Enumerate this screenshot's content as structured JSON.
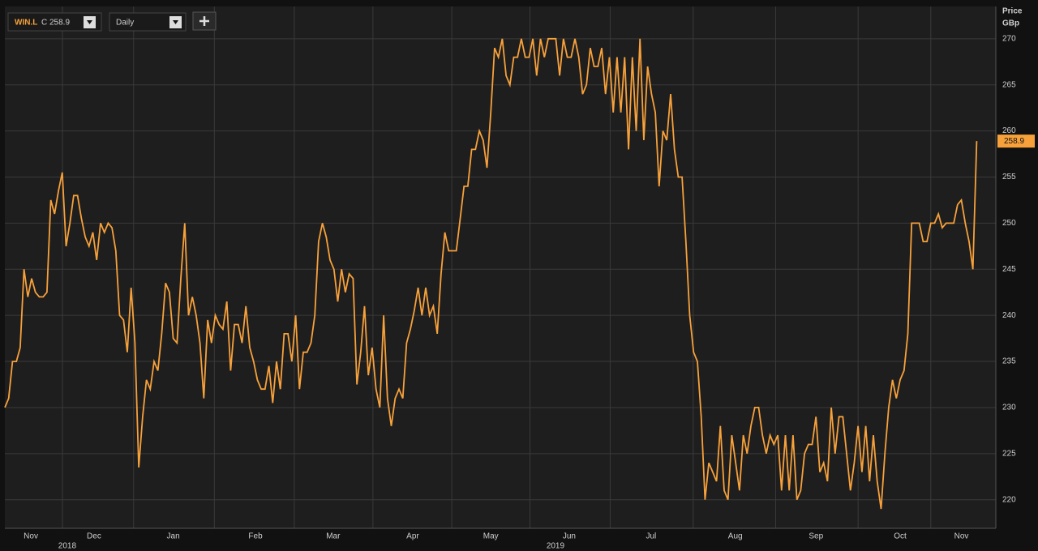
{
  "toolbar": {
    "symbol": "WIN.L",
    "close_prefix": "C",
    "interval": "Daily"
  },
  "chart_data": {
    "type": "line",
    "y_label_line1": "Price",
    "y_label_line2": "GBp",
    "series": [
      {
        "name": "WIN.L",
        "color": "#f7a13b",
        "values": [
          230,
          231,
          235,
          235,
          236.5,
          245,
          242,
          244,
          242.5,
          242,
          242,
          242.5,
          252.5,
          251,
          253.5,
          255.5,
          247.5,
          250,
          253,
          253,
          250.5,
          248.5,
          247.5,
          249,
          246,
          250,
          249,
          250,
          249.5,
          247,
          240,
          239.5,
          236,
          243,
          237,
          223.5,
          229,
          233,
          232,
          235,
          234,
          238,
          243.5,
          242.5,
          237.5,
          237,
          244,
          250,
          240,
          242,
          240,
          237,
          231,
          239.5,
          237,
          240,
          239,
          238.5,
          241.5,
          234,
          239,
          239,
          237,
          241,
          236.5,
          235,
          233,
          232,
          232,
          234.5,
          230.5,
          235,
          232,
          238,
          238,
          235,
          240,
          232,
          236,
          236,
          237,
          240,
          248,
          250,
          248.5,
          246,
          245,
          241.5,
          245,
          242.5,
          244.5,
          244,
          232.5,
          236,
          241,
          233.5,
          236.5,
          232,
          230,
          240,
          231,
          228,
          231,
          232,
          231,
          237,
          238.5,
          240.5,
          243,
          240,
          243,
          240,
          241,
          238,
          244.5,
          249,
          247,
          247,
          247,
          250.5,
          254,
          254,
          258,
          258,
          260,
          259,
          256,
          262,
          269,
          268,
          270,
          266,
          265,
          268,
          268,
          270,
          268,
          268,
          270,
          266,
          270,
          268,
          270,
          270,
          270,
          266,
          270,
          268,
          268,
          270,
          268,
          264,
          265,
          269,
          267,
          267,
          269,
          264,
          268,
          262,
          268,
          262,
          268,
          258,
          268,
          260,
          270,
          259,
          267,
          264,
          262,
          254,
          260,
          259,
          264,
          258,
          255,
          255,
          248,
          240,
          236,
          235,
          229,
          220,
          224,
          223,
          222,
          228,
          221,
          220,
          227,
          224,
          221,
          227,
          225,
          228,
          230,
          230,
          227,
          225,
          227,
          226,
          227,
          221,
          227,
          221,
          227,
          220,
          221,
          225,
          226,
          226,
          229,
          223,
          224,
          222,
          230,
          225,
          229,
          229,
          225,
          221,
          224,
          228,
          223,
          228,
          222,
          227,
          222,
          219,
          225,
          230,
          233,
          231,
          233,
          234,
          238,
          250,
          250,
          250,
          248,
          248,
          250,
          250,
          251,
          249.5,
          250,
          250,
          250,
          252,
          252.5,
          250,
          248,
          245,
          258.9
        ]
      }
    ],
    "xlim": [
      0,
      259
    ],
    "xticks": [
      {
        "value": 6.8,
        "label": "Nov"
      },
      {
        "value": 23.3,
        "label": "Dec"
      },
      {
        "value": 44,
        "label": "Jan"
      },
      {
        "value": 65.5,
        "label": "Feb"
      },
      {
        "value": 85.8,
        "label": "Mar"
      },
      {
        "value": 106.6,
        "label": "Apr"
      },
      {
        "value": 127,
        "label": "May"
      },
      {
        "value": 147.5,
        "label": "Jun"
      },
      {
        "value": 168.9,
        "label": "Jul"
      },
      {
        "value": 190.9,
        "label": "Aug"
      },
      {
        "value": 212,
        "label": "Sep"
      },
      {
        "value": 234,
        "label": "Oct"
      },
      {
        "value": 250,
        "label": "Nov"
      }
    ],
    "year_ticks": [
      {
        "value": 16.3,
        "label": "2018"
      },
      {
        "value": 143.9,
        "label": "2019"
      }
    ],
    "ylim": [
      216.9,
      273.5
    ],
    "yticks": [
      220,
      225,
      230,
      235,
      240,
      245,
      250,
      255,
      260,
      265,
      270
    ],
    "grid": true
  }
}
